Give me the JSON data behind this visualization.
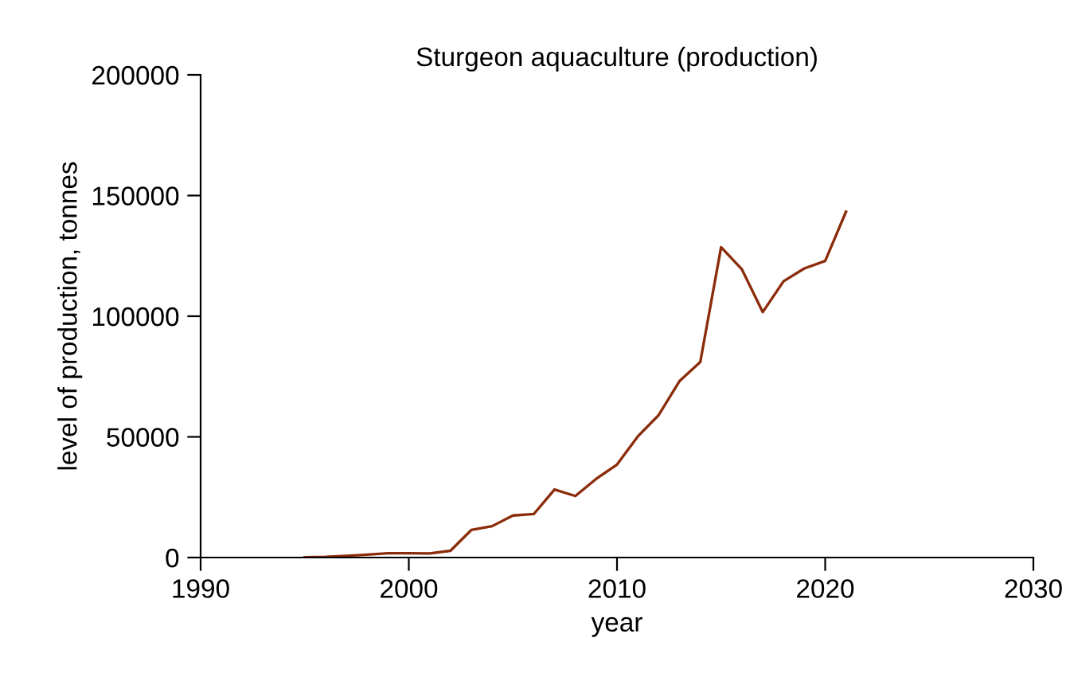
{
  "chart_data": {
    "type": "line",
    "title": "Sturgeon aquaculture (production)",
    "xlabel": "year",
    "ylabel": "level of production, tonnes",
    "x": [
      1995,
      1996,
      1997,
      1998,
      1999,
      2000,
      2001,
      2002,
      2003,
      2004,
      2005,
      2006,
      2007,
      2008,
      2009,
      2010,
      2011,
      2012,
      2013,
      2014,
      2015,
      2016,
      2017,
      2018,
      2019,
      2020,
      2021
    ],
    "series": [
      {
        "color": "#8b2c0b",
        "values": [
          100,
          300,
          700,
          1200,
          1800,
          1800,
          1700,
          2800,
          11400,
          13000,
          17400,
          18000,
          28200,
          25500,
          32600,
          38500,
          50200,
          59000,
          73100,
          81000,
          128600,
          119400,
          101700,
          114500,
          119800,
          122900,
          143300
        ]
      }
    ],
    "xlim": [
      1990,
      2030
    ],
    "xticks": [
      1990,
      2000,
      2010,
      2020,
      2030
    ],
    "ylim": [
      0,
      200000
    ],
    "yticks": [
      0,
      50000,
      100000,
      150000,
      200000
    ],
    "grid": false,
    "legend": false,
    "marker": "none",
    "line_style": "solid"
  }
}
